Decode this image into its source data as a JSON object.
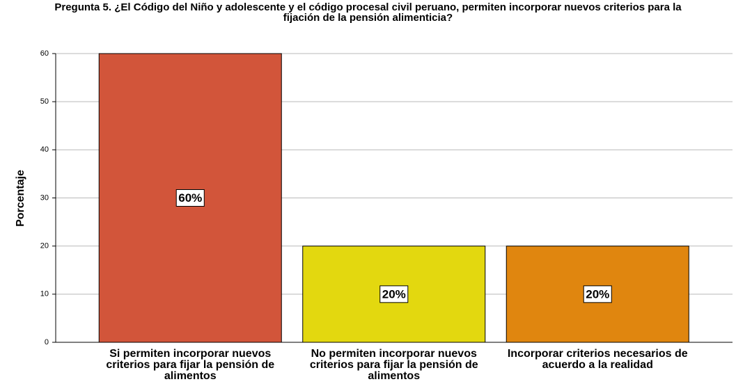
{
  "chart_data": {
    "type": "bar",
    "title": "Pregunta 5. ¿El Código del Niño y adolescente y el código procesal civil peruano, permiten incorporar nuevos criterios para la fijación de la pensión alimenticia?",
    "y_label": "Porcentaje",
    "categories": [
      "Si permiten incorporar nuevos criterios para fijar la pensión de alimentos",
      "No permiten incorporar nuevos criterios para fijar la pensión de alimentos",
      "Incorporar criterios necesarios de acuerdo a la realidad"
    ],
    "values": [
      60,
      20,
      20
    ],
    "value_labels": [
      "60%",
      "20%",
      "20%"
    ],
    "colors": [
      "#d2553a",
      "#e3d80f",
      "#e0860f"
    ],
    "ylim": [
      0,
      60
    ],
    "yticks": [
      0,
      10,
      20,
      30,
      40,
      50,
      60
    ],
    "grid": true
  }
}
